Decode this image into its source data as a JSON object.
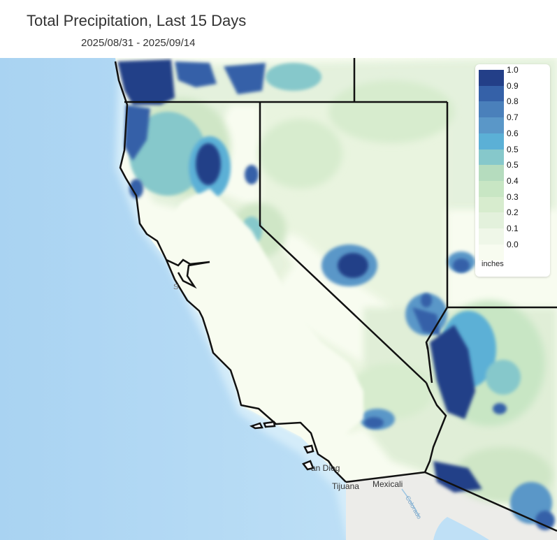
{
  "header": {
    "title": "Total Precipitation, Last 15 Days",
    "date_range": "2025/08/31 - 2025/09/14"
  },
  "legend": {
    "units": "inches",
    "labels": [
      "1.0",
      "0.9",
      "0.8",
      "0.7",
      "0.6",
      "0.5",
      "0.5",
      "0.4",
      "0.3",
      "0.2",
      "0.1",
      "0.0"
    ],
    "colors": [
      "#233f88",
      "#3561a8",
      "#4a80bb",
      "#5a97c8",
      "#5bb0d6",
      "#86c8cb",
      "#b5dcbe",
      "#c8e6c4",
      "#d7ecce",
      "#e3f1dc",
      "#eff7e8",
      "#f8fcf0"
    ]
  },
  "map": {
    "labels": {
      "tijuana": "Tijuana",
      "mexicali": "Mexicali",
      "san_diego": "an Dieg",
      "colorado": "Colorado",
      "sf": "S"
    },
    "colors": {
      "ocean": "#bfe0f6",
      "ocean_deep": "#a9d3f2",
      "land_mexico": "#ecece9",
      "dry": "#f8fcf0",
      "light": "#e6f2dc",
      "green": "#cfe6c6",
      "teal": "#8ec6d0",
      "blue": "#4a80bb",
      "dark": "#233f88",
      "borders": "#111111"
    }
  }
}
